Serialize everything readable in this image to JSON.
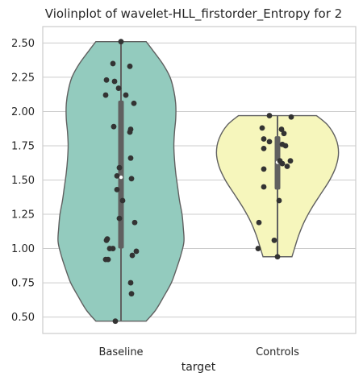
{
  "chart_data": {
    "type": "violin",
    "title": "Violinplot of wavelet-HLL_firstorder_Entropy for 2",
    "xlabel": "target",
    "ylabel": "",
    "ylim": [
      0.38,
      2.62
    ],
    "yticks": [
      0.5,
      0.75,
      1.0,
      1.25,
      1.5,
      1.75,
      2.0,
      2.25,
      2.5
    ],
    "ytick_labels": [
      "0.50",
      "0.75",
      "1.00",
      "1.25",
      "1.50",
      "1.75",
      "2.00",
      "2.25",
      "2.50"
    ],
    "grid": true,
    "categories": [
      "Baseline",
      "Controls"
    ],
    "groups": [
      {
        "category": "Baseline",
        "color": "#93cbbe",
        "min": 0.47,
        "max": 2.51,
        "q1": 1.0,
        "median": 1.52,
        "q3": 2.08,
        "density": [
          [
            0.47,
            0.4
          ],
          [
            0.55,
            0.55
          ],
          [
            0.65,
            0.68
          ],
          [
            0.75,
            0.8
          ],
          [
            0.85,
            0.88
          ],
          [
            0.95,
            0.95
          ],
          [
            1.05,
            1.0
          ],
          [
            1.15,
            0.99
          ],
          [
            1.25,
            0.97
          ],
          [
            1.35,
            0.93
          ],
          [
            1.45,
            0.9
          ],
          [
            1.55,
            0.87
          ],
          [
            1.65,
            0.85
          ],
          [
            1.75,
            0.84
          ],
          [
            1.85,
            0.85
          ],
          [
            1.95,
            0.87
          ],
          [
            2.05,
            0.87
          ],
          [
            2.15,
            0.84
          ],
          [
            2.25,
            0.78
          ],
          [
            2.35,
            0.66
          ],
          [
            2.45,
            0.5
          ],
          [
            2.51,
            0.4
          ]
        ],
        "points": [
          {
            "x": 0.0,
            "y": 2.51
          },
          {
            "x": -0.1,
            "y": 2.35
          },
          {
            "x": 0.11,
            "y": 2.33
          },
          {
            "x": -0.18,
            "y": 2.23
          },
          {
            "x": -0.08,
            "y": 2.22
          },
          {
            "x": -0.03,
            "y": 2.17
          },
          {
            "x": -0.19,
            "y": 2.12
          },
          {
            "x": 0.06,
            "y": 2.12
          },
          {
            "x": 0.16,
            "y": 2.06
          },
          {
            "x": -0.09,
            "y": 1.89
          },
          {
            "x": 0.12,
            "y": 1.87
          },
          {
            "x": 0.11,
            "y": 1.85
          },
          {
            "x": 0.12,
            "y": 1.66
          },
          {
            "x": -0.02,
            "y": 1.59
          },
          {
            "x": -0.05,
            "y": 1.53
          },
          {
            "x": 0.13,
            "y": 1.51
          },
          {
            "x": -0.05,
            "y": 1.43
          },
          {
            "x": 0.02,
            "y": 1.35
          },
          {
            "x": -0.02,
            "y": 1.22
          },
          {
            "x": 0.17,
            "y": 1.19
          },
          {
            "x": -0.17,
            "y": 1.07
          },
          {
            "x": -0.18,
            "y": 1.06
          },
          {
            "x": -0.1,
            "y": 1.0
          },
          {
            "x": -0.14,
            "y": 1.0
          },
          {
            "x": 0.19,
            "y": 0.98
          },
          {
            "x": 0.14,
            "y": 0.95
          },
          {
            "x": -0.16,
            "y": 0.92
          },
          {
            "x": -0.19,
            "y": 0.92
          },
          {
            "x": 0.12,
            "y": 0.75
          },
          {
            "x": 0.13,
            "y": 0.67
          },
          {
            "x": -0.07,
            "y": 0.47
          }
        ]
      },
      {
        "category": "Controls",
        "color": "#f6f6bc",
        "min": 0.94,
        "max": 1.97,
        "q1": 1.43,
        "median": 1.63,
        "q3": 1.82,
        "density": [
          [
            0.94,
            0.23
          ],
          [
            1.0,
            0.27
          ],
          [
            1.1,
            0.34
          ],
          [
            1.2,
            0.43
          ],
          [
            1.3,
            0.55
          ],
          [
            1.4,
            0.69
          ],
          [
            1.5,
            0.83
          ],
          [
            1.6,
            0.93
          ],
          [
            1.7,
            0.97
          ],
          [
            1.8,
            0.93
          ],
          [
            1.9,
            0.8
          ],
          [
            1.97,
            0.62
          ]
        ],
        "points": [
          {
            "x": -0.1,
            "y": 1.97
          },
          {
            "x": 0.17,
            "y": 1.96
          },
          {
            "x": -0.19,
            "y": 1.88
          },
          {
            "x": 0.05,
            "y": 1.87
          },
          {
            "x": 0.08,
            "y": 1.84
          },
          {
            "x": -0.17,
            "y": 1.8
          },
          {
            "x": -0.1,
            "y": 1.78
          },
          {
            "x": 0.06,
            "y": 1.76
          },
          {
            "x": 0.1,
            "y": 1.75
          },
          {
            "x": -0.17,
            "y": 1.73
          },
          {
            "x": 0.03,
            "y": 1.64
          },
          {
            "x": 0.16,
            "y": 1.64
          },
          {
            "x": 0.06,
            "y": 1.62
          },
          {
            "x": 0.12,
            "y": 1.6
          },
          {
            "x": -0.17,
            "y": 1.58
          },
          {
            "x": -0.17,
            "y": 1.45
          },
          {
            "x": 0.02,
            "y": 1.35
          },
          {
            "x": -0.23,
            "y": 1.19
          },
          {
            "x": -0.04,
            "y": 1.06
          },
          {
            "x": -0.24,
            "y": 1.0
          },
          {
            "x": 0.0,
            "y": 0.94
          }
        ]
      }
    ]
  }
}
